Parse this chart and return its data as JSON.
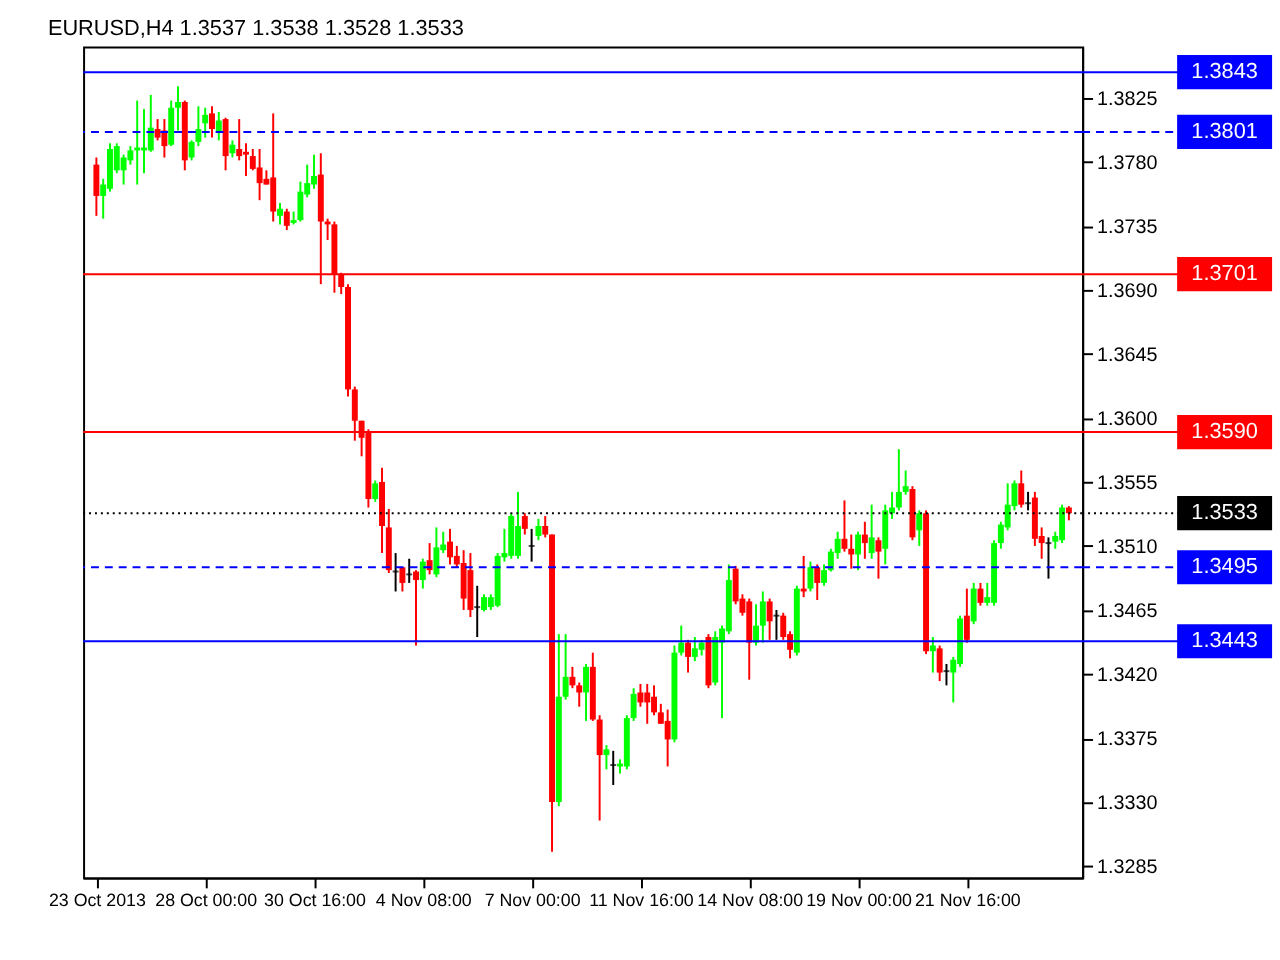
{
  "chart_data": {
    "type": "candlestick",
    "title": "EURUSD,H4  1.3537 1.3538 1.3528 1.3533",
    "categories": [
      "23 Oct 2013",
      null,
      null,
      null,
      null,
      null,
      null,
      null,
      null,
      null,
      null,
      null,
      null,
      null,
      null,
      null,
      "28 Oct 00:00",
      null,
      null,
      null,
      null,
      null,
      null,
      null,
      null,
      null,
      null,
      null,
      null,
      null,
      null,
      null,
      "30 Oct 16:00",
      null,
      null,
      null,
      null,
      null,
      null,
      null,
      null,
      null,
      null,
      null,
      null,
      null,
      null,
      null,
      "4 Nov 08:00",
      null,
      null,
      null,
      null,
      null,
      null,
      null,
      null,
      null,
      null,
      null,
      null,
      null,
      null,
      null,
      "7 Nov 00:00",
      null,
      null,
      null,
      null,
      null,
      null,
      null,
      null,
      null,
      null,
      null,
      null,
      null,
      null,
      null,
      "11 Nov 16:00",
      null,
      null,
      null,
      null,
      null,
      null,
      null,
      null,
      null,
      null,
      null,
      null,
      null,
      null,
      null,
      "14 Nov 08:00",
      null,
      null,
      null,
      null,
      null,
      null,
      null,
      null,
      null,
      null,
      null,
      null,
      null,
      null,
      null,
      "19 Nov 00:00",
      null,
      null,
      null,
      null,
      null,
      null,
      null,
      null,
      null,
      null,
      null,
      null,
      null,
      null,
      null,
      "21 Nov 16:00",
      null,
      null,
      null,
      null,
      null,
      null,
      null,
      null,
      null,
      null,
      null,
      null,
      null,
      null,
      null
    ],
    "ohlc": [
      [
        1.3778,
        1.3783,
        1.3742,
        1.3756
      ],
      [
        1.3756,
        1.3768,
        1.374,
        1.3764
      ],
      [
        1.3761,
        1.3793,
        1.3759,
        1.3789
      ],
      [
        1.3774,
        1.3793,
        1.3772,
        1.3791
      ],
      [
        1.3774,
        1.3785,
        1.3764,
        1.3783
      ],
      [
        1.3781,
        1.3791,
        1.3778,
        1.3788
      ],
      [
        1.3788,
        1.3823,
        1.3764,
        1.379
      ],
      [
        1.3788,
        1.3817,
        1.3772,
        1.379
      ],
      [
        1.3788,
        1.3827,
        1.3787,
        1.3804
      ],
      [
        1.3803,
        1.381,
        1.3795,
        1.3797
      ],
      [
        1.3802,
        1.381,
        1.3783,
        1.3791
      ],
      [
        1.3792,
        1.3823,
        1.3791,
        1.3818
      ],
      [
        1.3818,
        1.3833,
        1.3802,
        1.3822
      ],
      [
        1.3822,
        1.3823,
        1.3774,
        1.3781
      ],
      [
        1.3783,
        1.3795,
        1.3781,
        1.3794
      ],
      [
        1.3794,
        1.3819,
        1.3791,
        1.3803
      ],
      [
        1.3807,
        1.3818,
        1.3797,
        1.3813
      ],
      [
        1.3814,
        1.3819,
        1.3797,
        1.3803
      ],
      [
        1.3801,
        1.3815,
        1.3795,
        1.3809
      ],
      [
        1.381,
        1.3811,
        1.3774,
        1.3784
      ],
      [
        1.3786,
        1.3795,
        1.3783,
        1.3792
      ],
      [
        1.3789,
        1.381,
        1.3781,
        1.3784
      ],
      [
        1.3787,
        1.3793,
        1.377,
        1.3785
      ],
      [
        1.3784,
        1.3789,
        1.3774,
        1.3775
      ],
      [
        1.3776,
        1.3789,
        1.3753,
        1.3765
      ],
      [
        1.3768,
        1.3774,
        1.3764,
        1.3764
      ],
      [
        1.3769,
        1.3814,
        1.3738,
        1.3745
      ],
      [
        1.3742,
        1.3751,
        1.3736,
        1.3747
      ],
      [
        1.3745,
        1.3747,
        1.3732,
        1.3735
      ],
      [
        1.3737,
        1.3745,
        1.3736,
        1.3739
      ],
      [
        1.3739,
        1.3766,
        1.3738,
        1.3759
      ],
      [
        1.3757,
        1.3778,
        1.3755,
        1.3765
      ],
      [
        1.3764,
        1.3785,
        1.3761,
        1.377
      ],
      [
        1.3771,
        1.3786,
        1.3694,
        1.3738
      ],
      [
        1.3738,
        1.374,
        1.3725,
        1.3736
      ],
      [
        1.3736,
        1.3738,
        1.3688,
        1.3701
      ],
      [
        1.3701,
        1.3702,
        1.3687,
        1.3692
      ],
      [
        1.3692,
        1.3694,
        1.3615,
        1.362
      ],
      [
        1.362,
        1.3622,
        1.3584,
        1.3598
      ],
      [
        1.3598,
        1.3598,
        1.3573,
        1.3586
      ],
      [
        1.359,
        1.3592,
        1.3537,
        1.3543
      ],
      [
        1.3543,
        1.3556,
        1.3541,
        1.3554
      ],
      [
        1.3555,
        1.3565,
        1.3505,
        1.3524
      ],
      [
        1.3523,
        1.3536,
        1.3491,
        1.3493
      ],
      [
        1.3492,
        1.3505,
        1.3478,
        1.3492
      ],
      [
        1.3495,
        1.3495,
        1.3478,
        1.3484
      ],
      [
        1.349,
        1.3501,
        1.3484,
        1.349
      ],
      [
        1.3492,
        1.3493,
        1.344,
        1.3486
      ],
      [
        1.3486,
        1.3501,
        1.348,
        1.3499
      ],
      [
        1.35,
        1.3512,
        1.349,
        1.3493
      ],
      [
        1.349,
        1.3523,
        1.3488,
        1.3509
      ],
      [
        1.3507,
        1.352,
        1.3505,
        1.3511
      ],
      [
        1.3513,
        1.3522,
        1.3497,
        1.3502
      ],
      [
        1.3503,
        1.351,
        1.3495,
        1.3497
      ],
      [
        1.3498,
        1.3507,
        1.3465,
        1.3473
      ],
      [
        1.3493,
        1.3505,
        1.346,
        1.3465
      ],
      [
        1.3467,
        1.3482,
        1.3446,
        1.3467
      ],
      [
        1.3465,
        1.3476,
        1.3464,
        1.3474
      ],
      [
        1.3467,
        1.3476,
        1.3465,
        1.3474
      ],
      [
        1.3468,
        1.3505,
        1.3467,
        1.3503
      ],
      [
        1.3502,
        1.3522,
        1.3499,
        1.3505
      ],
      [
        1.3503,
        1.3533,
        1.3501,
        1.3531
      ],
      [
        1.3503,
        1.3548,
        1.3501,
        1.3524
      ],
      [
        1.3531,
        1.3533,
        1.3518,
        1.3522
      ],
      [
        1.351,
        1.3522,
        1.3499,
        1.351
      ],
      [
        1.3517,
        1.3529,
        1.3514,
        1.3524
      ],
      [
        1.3524,
        1.3531,
        1.3516,
        1.3518
      ],
      [
        1.3518,
        1.3518,
        1.3295,
        1.333
      ],
      [
        1.333,
        1.3448,
        1.3327,
        1.3404
      ],
      [
        1.3404,
        1.3448,
        1.3402,
        1.3418
      ],
      [
        1.3418,
        1.3425,
        1.341,
        1.3412
      ],
      [
        1.3412,
        1.3414,
        1.3397,
        1.3407
      ],
      [
        1.3407,
        1.3427,
        1.3387,
        1.3425
      ],
      [
        1.3425,
        1.3435,
        1.3387,
        1.3388
      ],
      [
        1.3388,
        1.3391,
        1.3317,
        1.3363
      ],
      [
        1.3363,
        1.337,
        1.3353,
        1.3367
      ],
      [
        1.3356,
        1.3366,
        1.3342,
        1.3356
      ],
      [
        1.3355,
        1.336,
        1.335,
        1.3357
      ],
      [
        1.3355,
        1.3391,
        1.3353,
        1.3389
      ],
      [
        1.3389,
        1.341,
        1.3387,
        1.3406
      ],
      [
        1.3407,
        1.3413,
        1.3397,
        1.34
      ],
      [
        1.3407,
        1.3413,
        1.3385,
        1.34
      ],
      [
        1.3404,
        1.3412,
        1.3391,
        1.3393
      ],
      [
        1.3393,
        1.3399,
        1.3385,
        1.3385
      ],
      [
        1.3387,
        1.3395,
        1.3355,
        1.3374
      ],
      [
        1.3374,
        1.344,
        1.3372,
        1.3435
      ],
      [
        1.3435,
        1.3454,
        1.3433,
        1.3442
      ],
      [
        1.3442,
        1.3444,
        1.3421,
        1.3432
      ],
      [
        1.3432,
        1.3446,
        1.3429,
        1.3438
      ],
      [
        1.3437,
        1.3444,
        1.3433,
        1.3442
      ],
      [
        1.3446,
        1.3448,
        1.341,
        1.3412
      ],
      [
        1.3414,
        1.345,
        1.3412,
        1.3446
      ],
      [
        1.3442,
        1.3454,
        1.3389,
        1.3452
      ],
      [
        1.345,
        1.3497,
        1.3448,
        1.3486
      ],
      [
        1.3494,
        1.3496,
        1.3469,
        1.3471
      ],
      [
        1.3473,
        1.3476,
        1.3461,
        1.3463
      ],
      [
        1.3471,
        1.3473,
        1.3416,
        1.3442
      ],
      [
        1.3442,
        1.3469,
        1.344,
        1.3454
      ],
      [
        1.3454,
        1.3478,
        1.3442,
        1.3471
      ],
      [
        1.3471,
        1.3473,
        1.3444,
        1.3457
      ],
      [
        1.3461,
        1.3465,
        1.3444,
        1.3461
      ],
      [
        1.3461,
        1.3463,
        1.3444,
        1.3446
      ],
      [
        1.3448,
        1.345,
        1.3431,
        1.3437
      ],
      [
        1.3435,
        1.3482,
        1.3433,
        1.348
      ],
      [
        1.348,
        1.3503,
        1.3474,
        1.3478
      ],
      [
        1.348,
        1.3499,
        1.3478,
        1.3495
      ],
      [
        1.3495,
        1.3497,
        1.3472,
        1.3484
      ],
      [
        1.3484,
        1.3497,
        1.3482,
        1.3493
      ],
      [
        1.3493,
        1.3508,
        1.3492,
        1.3506
      ],
      [
        1.3505,
        1.352,
        1.3501,
        1.3515
      ],
      [
        1.3515,
        1.3542,
        1.3506,
        1.3508
      ],
      [
        1.3508,
        1.3518,
        1.3494,
        1.3504
      ],
      [
        1.3504,
        1.352,
        1.3493,
        1.3518
      ],
      [
        1.3518,
        1.3527,
        1.3501,
        1.3512
      ],
      [
        1.3505,
        1.3539,
        1.3501,
        1.3516
      ],
      [
        1.3514,
        1.3516,
        1.3487,
        1.3506
      ],
      [
        1.3508,
        1.3539,
        1.3497,
        1.3535
      ],
      [
        1.3533,
        1.3548,
        1.3529,
        1.3537
      ],
      [
        1.3537,
        1.3578,
        1.3535,
        1.3548
      ],
      [
        1.3548,
        1.3563,
        1.3546,
        1.3552
      ],
      [
        1.355,
        1.3552,
        1.3514,
        1.3516
      ],
      [
        1.3521,
        1.3535,
        1.351,
        1.3533
      ],
      [
        1.3533,
        1.3535,
        1.3434,
        1.3436
      ],
      [
        1.3436,
        1.3446,
        1.3421,
        1.344
      ],
      [
        1.3438,
        1.344,
        1.3415,
        1.3421
      ],
      [
        1.3422,
        1.3427,
        1.3412,
        1.3422
      ],
      [
        1.3421,
        1.3432,
        1.34,
        1.343
      ],
      [
        1.3427,
        1.3461,
        1.3425,
        1.3459
      ],
      [
        1.3461,
        1.348,
        1.3442,
        1.3444
      ],
      [
        1.3457,
        1.3484,
        1.3455,
        1.348
      ],
      [
        1.348,
        1.3484,
        1.3468,
        1.347
      ],
      [
        1.347,
        1.3484,
        1.3468,
        1.3474
      ],
      [
        1.347,
        1.3514,
        1.3468,
        1.3512
      ],
      [
        1.3512,
        1.3527,
        1.3508,
        1.3525
      ],
      [
        1.3523,
        1.3554,
        1.3521,
        1.3539
      ],
      [
        1.3538,
        1.3556,
        1.3535,
        1.3554
      ],
      [
        1.3554,
        1.3563,
        1.3537,
        1.3539
      ],
      [
        1.354,
        1.3548,
        1.3535,
        1.354
      ],
      [
        1.3544,
        1.3548,
        1.351,
        1.3515
      ],
      [
        1.3517,
        1.3523,
        1.3501,
        1.3512
      ],
      [
        1.3512,
        1.3516,
        1.3487,
        1.3512
      ],
      [
        1.3513,
        1.352,
        1.3508,
        1.3517
      ],
      [
        1.3514,
        1.3539,
        1.3512,
        1.3537
      ],
      [
        1.3537,
        1.3538,
        1.3528,
        1.3533
      ]
    ],
    "colors": [
      "#ff0000",
      "#00ff00",
      "#00ff00",
      "#00ff00",
      "#00ff00",
      "#00ff00",
      "#00ff00",
      "#00ff00",
      "#00ff00",
      "#ff0000",
      "#ff0000",
      "#00ff00",
      "#00ff00",
      "#ff0000",
      "#00ff00",
      "#00ff00",
      "#00ff00",
      "#ff0000",
      "#00ff00",
      "#ff0000",
      "#00ff00",
      "#ff0000",
      "#ff0000",
      "#ff0000",
      "#ff0000",
      "#ff0000",
      "#ff0000",
      "#00ff00",
      "#ff0000",
      "#00ff00",
      "#00ff00",
      "#00ff00",
      "#00ff00",
      "#ff0000",
      "#ff0000",
      "#ff0000",
      "#ff0000",
      "#ff0000",
      "#ff0000",
      "#ff0000",
      "#ff0000",
      "#00ff00",
      "#ff0000",
      "#ff0000",
      "#000000",
      "#ff0000",
      "#000000",
      "#ff0000",
      "#00ff00",
      "#ff0000",
      "#00ff00",
      "#00ff00",
      "#ff0000",
      "#ff0000",
      "#ff0000",
      "#ff0000",
      "#000000",
      "#00ff00",
      "#00ff00",
      "#00ff00",
      "#00ff00",
      "#00ff00",
      "#00ff00",
      "#ff0000",
      "#000000",
      "#00ff00",
      "#ff0000",
      "#ff0000",
      "#00ff00",
      "#00ff00",
      "#ff0000",
      "#ff0000",
      "#00ff00",
      "#ff0000",
      "#ff0000",
      "#00ff00",
      "#000000",
      "#00ff00",
      "#00ff00",
      "#00ff00",
      "#ff0000",
      "#ff0000",
      "#ff0000",
      "#ff0000",
      "#ff0000",
      "#00ff00",
      "#00ff00",
      "#ff0000",
      "#00ff00",
      "#00ff00",
      "#ff0000",
      "#00ff00",
      "#00ff00",
      "#00ff00",
      "#ff0000",
      "#ff0000",
      "#ff0000",
      "#00ff00",
      "#00ff00",
      "#ff0000",
      "#000000",
      "#ff0000",
      "#ff0000",
      "#00ff00",
      "#ff0000",
      "#00ff00",
      "#ff0000",
      "#00ff00",
      "#00ff00",
      "#00ff00",
      "#ff0000",
      "#ff0000",
      "#00ff00",
      "#ff0000",
      "#00ff00",
      "#ff0000",
      "#00ff00",
      "#00ff00",
      "#00ff00",
      "#00ff00",
      "#ff0000",
      "#00ff00",
      "#ff0000",
      "#00ff00",
      "#ff0000",
      "#000000",
      "#00ff00",
      "#00ff00",
      "#ff0000",
      "#00ff00",
      "#ff0000",
      "#00ff00",
      "#00ff00",
      "#00ff00",
      "#00ff00",
      "#00ff00",
      "#ff0000",
      "#000000",
      "#ff0000",
      "#ff0000",
      "#000000",
      "#00ff00",
      "#00ff00",
      "#ff0000"
    ],
    "ylim": [
      1.3277,
      1.3861
    ],
    "yticks": [
      1.3825,
      {
        "value": 1.378,
        "label": "1.3780"
      },
      1.3735,
      {
        "value": 1.369,
        "label": "1.3690"
      },
      1.3645,
      {
        "value": 1.36,
        "label": "1.3600"
      },
      1.3555,
      {
        "value": 1.351,
        "label": "1.3510"
      },
      1.3465,
      {
        "value": 1.342,
        "label": "1.3420"
      },
      1.3375,
      {
        "value": 1.333,
        "label": "1.3330"
      },
      1.3285
    ],
    "ref_lines": [
      {
        "axis": "y",
        "value": 1.3843,
        "label": "1.3843",
        "color": "#0000ff",
        "line_style": "solid"
      },
      {
        "axis": "y",
        "value": 1.3801,
        "label": "1.3801",
        "color": "#0000ff",
        "line_style": "dashed"
      },
      {
        "axis": "y",
        "value": 1.3701,
        "label": "1.3701",
        "color": "#ff0000",
        "line_style": "solid"
      },
      {
        "axis": "y",
        "value": 1.359,
        "label": "1.3590",
        "color": "#ff0000",
        "line_style": "solid"
      },
      {
        "axis": "y",
        "value": 1.3533,
        "label": "1.3533",
        "color": "#000000",
        "line_style": "dotted"
      },
      {
        "axis": "y",
        "value": 1.3495,
        "label": "1.3495",
        "color": "#0000ff",
        "line_style": "dashed"
      },
      {
        "axis": "y",
        "value": 1.3443,
        "label": "1.3443",
        "color": "#0000ff",
        "line_style": "solid"
      }
    ],
    "grid": false
  }
}
